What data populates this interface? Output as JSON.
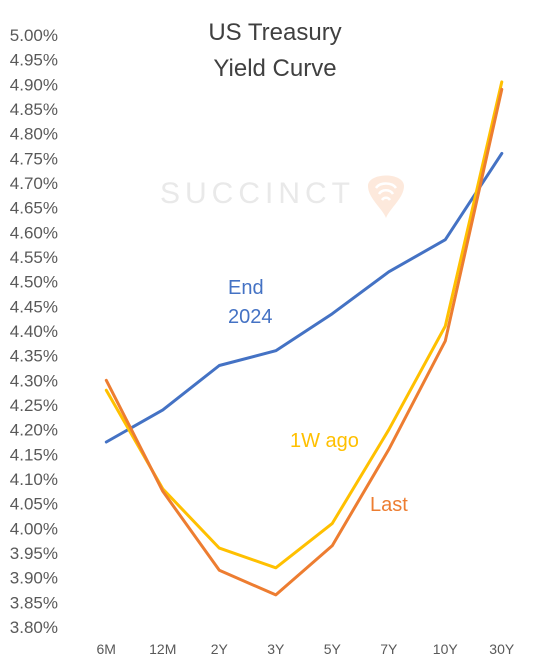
{
  "chart_data": {
    "type": "line",
    "title_lines": [
      "US Treasury",
      "Yield Curve"
    ],
    "watermark": "SUCCINCT",
    "categories": [
      "6M",
      "12M",
      "2Y",
      "3Y",
      "5Y",
      "7Y",
      "10Y",
      "30Y"
    ],
    "ylim": [
      3.8,
      5.0
    ],
    "ytick_step": 0.05,
    "grid": false,
    "series": [
      {
        "key": "end2024",
        "name_lines": [
          "End",
          "2024"
        ],
        "color": "#4472c4",
        "values": [
          4.175,
          4.24,
          4.33,
          4.36,
          4.435,
          4.52,
          4.585,
          4.76
        ]
      },
      {
        "key": "w1ago",
        "name_lines": [
          "1W ago"
        ],
        "color": "#ffc000",
        "values": [
          4.28,
          4.08,
          3.96,
          3.92,
          4.01,
          4.2,
          4.41,
          4.905
        ]
      },
      {
        "key": "last",
        "name_lines": [
          "Last"
        ],
        "color": "#ed7d31",
        "values": [
          4.3,
          4.075,
          3.915,
          3.865,
          3.965,
          4.16,
          4.38,
          4.89
        ]
      }
    ]
  }
}
